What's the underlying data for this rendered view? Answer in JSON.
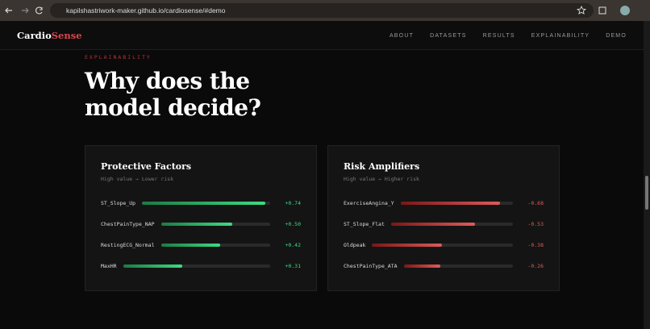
{
  "browser": {
    "url": "kapilshastriwork-maker.github.io/cardiosense/#demo"
  },
  "nav": {
    "logo": {
      "main": "Cardio",
      "accent": "Sense"
    },
    "links": [
      "ABOUT",
      "DATASETS",
      "RESULTS",
      "EXPLAINABILITY",
      "DEMO"
    ]
  },
  "section": {
    "eyebrow": "EXPLAINABILITY",
    "title_lines": [
      "Why does the",
      "model decide?"
    ]
  },
  "cards": [
    {
      "title": "Protective Factors",
      "subtitle": "High value → Lower risk",
      "tone": "green",
      "factors": [
        {
          "name": "ST_Slope_Up",
          "value": 0.74,
          "value_label": "+0.74"
        },
        {
          "name": "ChestPainType_NAP",
          "value": 0.5,
          "value_label": "+0.50"
        },
        {
          "name": "RestingECG_Normal",
          "value": 0.42,
          "value_label": "+0.42"
        },
        {
          "name": "MaxHR",
          "value": 0.31,
          "value_label": "+0.31"
        }
      ]
    },
    {
      "title": "Risk Amplifiers",
      "subtitle": "High value → Higher risk",
      "tone": "red",
      "factors": [
        {
          "name": "ExerciseAngina_Y",
          "value": -0.68,
          "value_label": "-0.68"
        },
        {
          "name": "ST_Slope_Flat",
          "value": -0.53,
          "value_label": "-0.53"
        },
        {
          "name": "Oldpeak",
          "value": -0.38,
          "value_label": "-0.38"
        },
        {
          "name": "ChestPainType_ATA",
          "value": -0.26,
          "value_label": "-0.26"
        }
      ]
    }
  ]
}
